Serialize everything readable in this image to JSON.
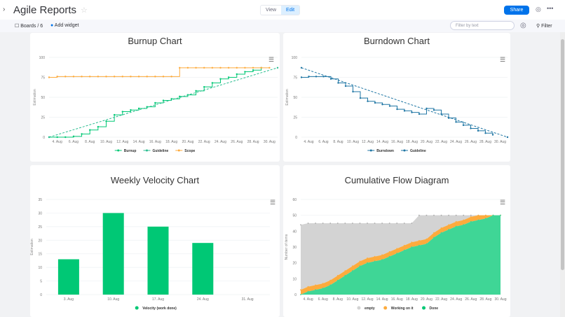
{
  "header": {
    "title": "Agile Reports",
    "view": "View",
    "edit": "Edit",
    "share": "Share"
  },
  "toolbar": {
    "boards": "Boards / 6",
    "add_widget": "Add widget",
    "filter_placeholder": "Filter by text",
    "filter": "Filter"
  },
  "colors": {
    "green": "#00c875",
    "teal": "#2bbd90",
    "orange": "#fdab3d",
    "blue": "#1f76a4",
    "gray": "#d3d3d3",
    "accent": "#0073ea"
  },
  "chart_data": [
    {
      "title": "Burnup Chart",
      "type": "line",
      "ylabel": "Estimation",
      "ylim": [
        0,
        100
      ],
      "yticks": [
        "0",
        "25",
        "50",
        "75",
        "100"
      ],
      "xticks": [
        "4. Aug",
        "6. Aug",
        "8. Aug",
        "10. Aug",
        "12. Aug",
        "14. Aug",
        "16. Aug",
        "18. Aug",
        "20. Aug",
        "22. Aug",
        "24. Aug",
        "26. Aug",
        "28. Aug",
        "30. Aug"
      ],
      "series": [
        {
          "name": "Burnup",
          "color": "#00c875",
          "step": true,
          "start_day": 3,
          "values": [
            0,
            0,
            0,
            1,
            4,
            9,
            13,
            20,
            28,
            32,
            34,
            36,
            38,
            43,
            46,
            48,
            51,
            53,
            58,
            63,
            68,
            73,
            75,
            79,
            82,
            84,
            87
          ]
        },
        {
          "name": "Guideline",
          "color": "#2bbd90",
          "dashed": true,
          "points": [
            [
              3,
              0
            ],
            [
              31,
              87
            ]
          ]
        },
        {
          "name": "Scope",
          "color": "#fdab3d",
          "step": true,
          "start_day": 3,
          "values": [
            75,
            76,
            76,
            76,
            76,
            76,
            76,
            76,
            76,
            76,
            76,
            76,
            76,
            76,
            76,
            76,
            87,
            87,
            87,
            87,
            87,
            87,
            87,
            87,
            87,
            87,
            87,
            87
          ]
        }
      ]
    },
    {
      "title": "Burndown Chart",
      "type": "line",
      "ylabel": "Estimation",
      "ylim": [
        0,
        100
      ],
      "yticks": [
        "0",
        "25",
        "50",
        "75",
        "100"
      ],
      "xticks": [
        "4. Aug",
        "6. Aug",
        "8. Aug",
        "10. Aug",
        "12. Aug",
        "14. Aug",
        "16. Aug",
        "18. Aug",
        "20. Aug",
        "22. Aug",
        "24. Aug",
        "26. Aug",
        "28. Aug",
        "30. Aug"
      ],
      "series": [
        {
          "name": "Burndown",
          "color": "#1f76a4",
          "step": true,
          "start_day": 3,
          "values": [
            75,
            76,
            76,
            76,
            73,
            68,
            64,
            57,
            49,
            45,
            43,
            41,
            39,
            35,
            33,
            31,
            29,
            36,
            34,
            29,
            24,
            19,
            15,
            11,
            8,
            5,
            3
          ]
        },
        {
          "name": "Guideline",
          "color": "#1f76a4",
          "dashed": true,
          "points": [
            [
              3,
              87
            ],
            [
              31,
              0
            ]
          ]
        }
      ]
    },
    {
      "title": "Weekly Velocity Chart",
      "type": "bar",
      "ylabel": "Estimation",
      "ylim": [
        0,
        35
      ],
      "yticks": [
        "0",
        "5",
        "10",
        "15",
        "20",
        "25",
        "30",
        "35"
      ],
      "categories": [
        "3. Aug",
        "10. Aug",
        "17. Aug",
        "24. Aug",
        "31. Aug"
      ],
      "series": [
        {
          "name": "Velocity (work done)",
          "color": "#00c875",
          "values": [
            13,
            30,
            25,
            19,
            0
          ]
        }
      ]
    },
    {
      "title": "Cumulative Flow Diagram",
      "type": "area",
      "ylabel": "Number of items",
      "ylim": [
        0,
        60
      ],
      "yticks": [
        "0",
        "10",
        "20",
        "30",
        "40",
        "50",
        "60"
      ],
      "xticks": [
        "4. Aug",
        "6. Aug",
        "8. Aug",
        "10. Aug",
        "12. Aug",
        "14. Aug",
        "16. Aug",
        "18. Aug",
        "20. Aug",
        "22. Aug",
        "24. Aug",
        "26. Aug",
        "28. Aug",
        "30. Aug"
      ],
      "start_day": 3,
      "series": [
        {
          "name": "empty",
          "color": "#d3d3d3",
          "values": [
            44,
            45,
            45,
            45,
            45,
            45,
            45,
            45,
            45,
            45,
            45,
            45,
            45,
            45,
            45,
            45,
            50,
            50,
            50,
            50,
            50,
            50,
            50,
            50,
            50,
            50,
            50,
            50
          ]
        },
        {
          "name": "Working on it",
          "color": "#fdab3d",
          "values": [
            3,
            5,
            6,
            7,
            9,
            12,
            15,
            18,
            21,
            23,
            24,
            25,
            27,
            29,
            31,
            33,
            34,
            35,
            39,
            42,
            44,
            46,
            47,
            49,
            50,
            50,
            50,
            50
          ]
        },
        {
          "name": "Done",
          "color": "#00c875",
          "values": [
            0,
            2,
            3,
            4,
            6,
            9,
            12,
            15,
            18,
            20,
            21,
            22,
            24,
            26,
            28,
            30,
            31,
            32,
            36,
            39,
            41,
            43,
            44,
            46,
            47,
            48,
            50,
            50
          ]
        }
      ]
    }
  ]
}
